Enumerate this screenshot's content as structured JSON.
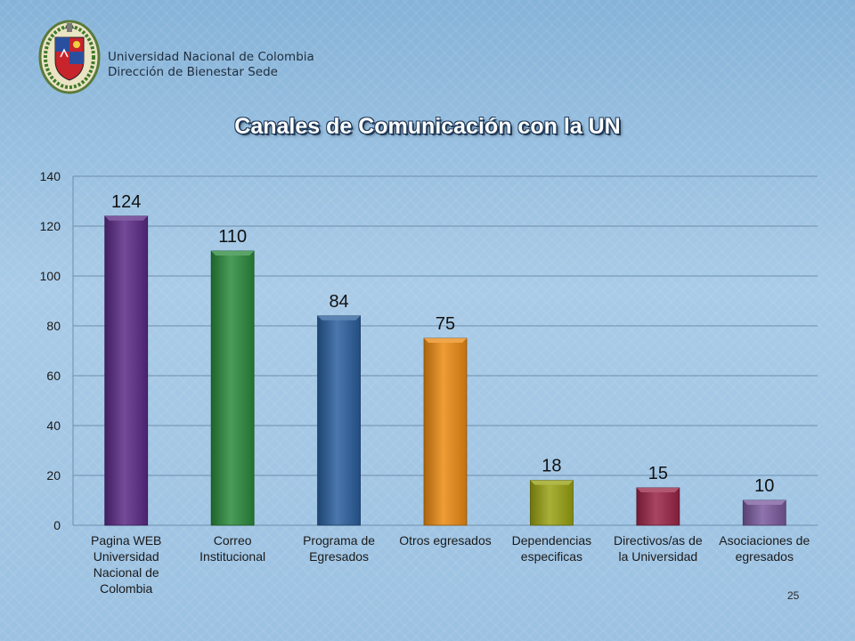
{
  "header": {
    "institution_line1": "Universidad Nacional de Colombia",
    "institution_line2": "Dirección de Bienestar Sede"
  },
  "slide": {
    "title": "Canales de Comunicación con la UN",
    "page_number": "25"
  },
  "chart_data": {
    "type": "bar",
    "title": "",
    "xlabel": "",
    "ylabel": "",
    "ylim": [
      0,
      140
    ],
    "yticks": [
      0,
      20,
      40,
      60,
      80,
      100,
      120,
      140
    ],
    "grid": true,
    "legend": "none",
    "categories": [
      [
        "Pagina WEB",
        "Universidad",
        "Nacional de",
        "Colombia"
      ],
      [
        "Correo",
        "Institucional"
      ],
      [
        "Programa de",
        "Egresados"
      ],
      [
        "Otros egresados"
      ],
      [
        "Dependencias",
        "especificas"
      ],
      [
        "Directivos/as de",
        "la Universidad"
      ],
      [
        "Asociaciones de",
        "egresados"
      ]
    ],
    "values": [
      124,
      110,
      84,
      75,
      18,
      15,
      10
    ],
    "colors": [
      "#5a2a86",
      "#2a8a3c",
      "#2a5f9e",
      "#ec8a12",
      "#9aa212",
      "#9a2448",
      "#7a5a9e"
    ]
  }
}
